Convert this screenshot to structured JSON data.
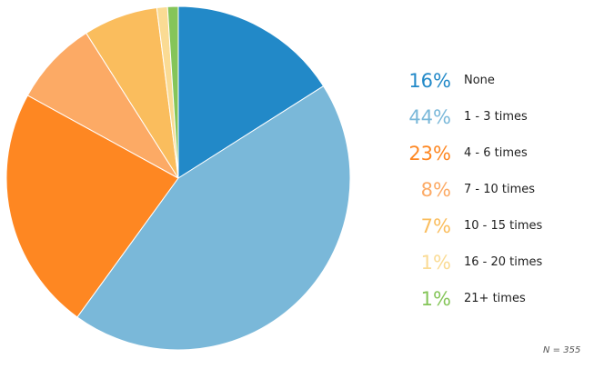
{
  "chart_data": {
    "type": "pie",
    "title": "",
    "categories": [
      "None",
      "1 - 3 times",
      "4 - 6 times",
      "7 - 10 times",
      "10 - 15 times",
      "16 - 20 times",
      "21+ times"
    ],
    "values": [
      16,
      44,
      23,
      8,
      7,
      1,
      1
    ],
    "value_labels": [
      "16%",
      "44%",
      "23%",
      "8%",
      "7%",
      "1%",
      "1%"
    ],
    "colors": [
      "#2289c8",
      "#7ab8d9",
      "#fe8722",
      "#fcaa65",
      "#fabd5d",
      "#fadb94",
      "#85c559"
    ],
    "legend_position": "right",
    "note": "N = 355"
  }
}
